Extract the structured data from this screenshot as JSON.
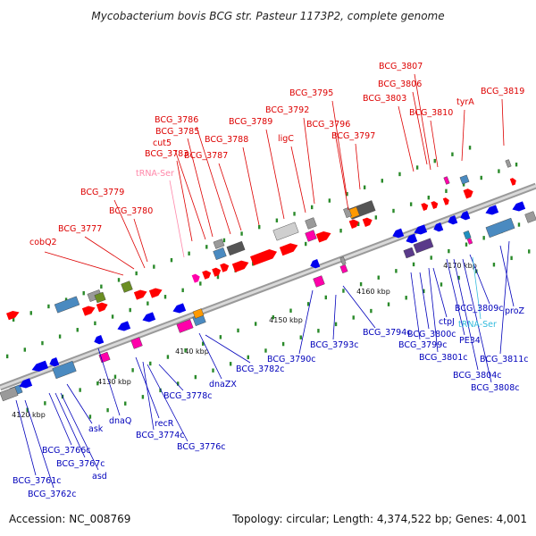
{
  "title": "Mycobacterium bovis BCG str. Pasteur 1173P2, complete genome",
  "footer": {
    "accession": "Accession: NC_008769",
    "summary": "Topology: circular; Length: 4,374,522 bp; Genes: 4,001"
  },
  "colors": {
    "forward_label": "#dd0000",
    "reverse_label": "#0000bb",
    "forward_trna": "#ff88aa",
    "reverse_trna": "#33bbdd",
    "backbone": "#8a8a8a",
    "tick_marker": "#2a8a2a"
  },
  "ticks": [
    "4120 kbp",
    "4130 kbp",
    "4140 kbp",
    "4150 kbp",
    "4160 kbp",
    "4170 kbp"
  ],
  "forward_labels": [
    "cobQ2",
    "BCG_3777",
    "BCG_3779",
    "BCG_3780",
    "tRNA-Ser",
    "BCG_3783",
    "cut5",
    "BCG_3785",
    "BCG_3786",
    "BCG_3787",
    "BCG_3788",
    "BCG_3789",
    "BCG_3792",
    "ligC",
    "BCG_3795",
    "BCG_3796",
    "BCG_3797",
    "BCG_3803",
    "BCG_3806",
    "BCG_3807",
    "BCG_3810",
    "tyrA",
    "BCG_3819"
  ],
  "reverse_labels": [
    "BCG_3761c",
    "BCG_3762c",
    "BCG_3766c",
    "BCG_3767c",
    "asd",
    "ask",
    "dnaQ",
    "recR",
    "BCG_3774c",
    "BCG_3776c",
    "BCG_3778c",
    "dnaZX",
    "BCG_3782c",
    "BCG_3790c",
    "BCG_3793c",
    "BCG_3794c",
    "BCG_3799c",
    "BCG_3800c",
    "BCG_3801c",
    "ctpJ",
    "PE34",
    "BCG_3804c",
    "BCG_3808c",
    "BCG_3809c",
    "tRNA-Ser",
    "proZ",
    "BCG_3811c"
  ]
}
